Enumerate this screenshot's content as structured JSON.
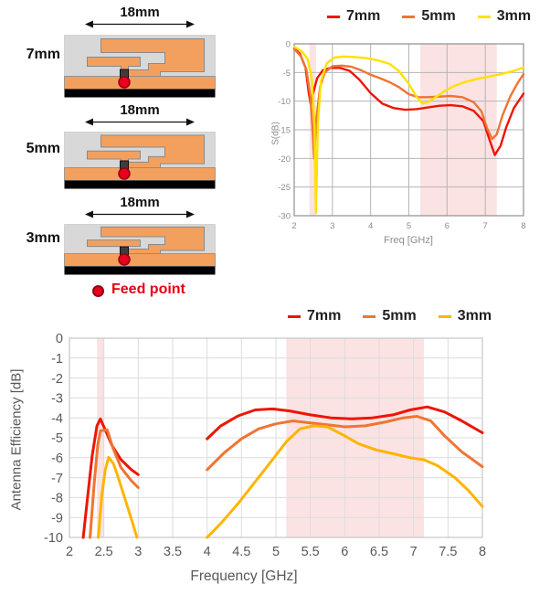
{
  "diagram_panel": {
    "figures": [
      {
        "width_label": "18mm",
        "height_label": "7mm"
      },
      {
        "width_label": "18mm",
        "height_label": "5mm"
      },
      {
        "width_label": "18mm",
        "height_label": "3mm"
      }
    ],
    "feed_point_label": "Feed point",
    "colors": {
      "substrate": "#d8d8d8",
      "copper": "#f3a05e",
      "copper_outline": "#8a8a8a",
      "pcb_black": "#000000",
      "feed_dot": "#e8001e",
      "feed_text": "#e60012"
    }
  },
  "chart_data": [
    {
      "id": "s",
      "type": "line",
      "title": "",
      "xlabel": "Freq [GHz]",
      "ylabel": "S(dB)",
      "xlim": [
        2,
        8
      ],
      "ylim": [
        -30,
        0
      ],
      "xticks": [
        2,
        3,
        4,
        5,
        6,
        7,
        8
      ],
      "yticks": [
        0,
        -5,
        -10,
        -15,
        -20,
        -25,
        -30
      ],
      "grid": true,
      "legend_position": "top",
      "band_color": "#fbe3e3",
      "highlight_bands_ghz": [
        [
          2.4,
          2.57
        ],
        [
          5.3,
          7.3
        ]
      ],
      "series": [
        {
          "name": "7mm",
          "color": "#ee1505",
          "segments": [
            [
              [
                2.0,
                -0.8
              ],
              [
                2.15,
                -1.7
              ],
              [
                2.3,
                -4.2
              ],
              [
                2.38,
                -8.5
              ],
              [
                2.43,
                -10.5
              ],
              [
                2.5,
                -8.5
              ],
              [
                2.6,
                -6.0
              ],
              [
                2.75,
                -4.6
              ],
              [
                2.95,
                -4.2
              ],
              [
                3.2,
                -4.2
              ],
              [
                3.45,
                -4.7
              ],
              [
                3.7,
                -6.2
              ],
              [
                4.0,
                -8.6
              ],
              [
                4.3,
                -10.4
              ],
              [
                4.6,
                -11.2
              ],
              [
                4.9,
                -11.5
              ],
              [
                5.2,
                -11.4
              ],
              [
                5.5,
                -11.1
              ],
              [
                5.8,
                -10.8
              ],
              [
                6.1,
                -10.7
              ],
              [
                6.4,
                -10.9
              ],
              [
                6.7,
                -11.7
              ],
              [
                6.95,
                -13.5
              ],
              [
                7.1,
                -16.5
              ],
              [
                7.25,
                -19.4
              ],
              [
                7.4,
                -17.8
              ],
              [
                7.55,
                -14.5
              ],
              [
                7.75,
                -11.2
              ],
              [
                8.0,
                -8.7
              ]
            ]
          ]
        },
        {
          "name": "5mm",
          "color": "#f07433",
          "segments": [
            [
              [
                2.0,
                -0.9
              ],
              [
                2.18,
                -2.2
              ],
              [
                2.32,
                -4.5
              ],
              [
                2.42,
                -9.0
              ],
              [
                2.48,
                -15.0
              ],
              [
                2.52,
                -20.0
              ],
              [
                2.58,
                -13.0
              ],
              [
                2.68,
                -7.5
              ],
              [
                2.8,
                -5.0
              ],
              [
                3.0,
                -3.9
              ],
              [
                3.25,
                -3.8
              ],
              [
                3.5,
                -4.0
              ],
              [
                3.75,
                -4.6
              ],
              [
                4.0,
                -5.4
              ],
              [
                4.25,
                -6.0
              ],
              [
                4.5,
                -6.7
              ],
              [
                4.75,
                -7.6
              ],
              [
                5.0,
                -8.8
              ],
              [
                5.25,
                -9.3
              ],
              [
                5.5,
                -9.3
              ],
              [
                5.8,
                -9.2
              ],
              [
                6.1,
                -9.1
              ],
              [
                6.4,
                -9.3
              ],
              [
                6.7,
                -10.2
              ],
              [
                6.9,
                -11.8
              ],
              [
                7.05,
                -14.8
              ],
              [
                7.18,
                -16.6
              ],
              [
                7.3,
                -15.8
              ],
              [
                7.45,
                -12.5
              ],
              [
                7.65,
                -9.2
              ],
              [
                7.85,
                -6.8
              ],
              [
                8.0,
                -5.3
              ]
            ]
          ]
        },
        {
          "name": "3mm",
          "color": "#ffe100",
          "segments": [
            [
              [
                2.0,
                -0.5
              ],
              [
                2.2,
                -1.3
              ],
              [
                2.35,
                -2.6
              ],
              [
                2.46,
                -6.0
              ],
              [
                2.53,
                -14.0
              ],
              [
                2.57,
                -29.5
              ],
              [
                2.62,
                -14.0
              ],
              [
                2.7,
                -6.5
              ],
              [
                2.85,
                -3.4
              ],
              [
                3.05,
                -2.4
              ],
              [
                3.3,
                -2.2
              ],
              [
                3.6,
                -2.3
              ],
              [
                3.9,
                -2.5
              ],
              [
                4.2,
                -2.9
              ],
              [
                4.5,
                -3.5
              ],
              [
                4.75,
                -4.8
              ],
              [
                5.0,
                -7.0
              ],
              [
                5.2,
                -9.2
              ],
              [
                5.35,
                -10.4
              ],
              [
                5.5,
                -10.2
              ],
              [
                5.7,
                -9.3
              ],
              [
                5.95,
                -8.2
              ],
              [
                6.2,
                -7.3
              ],
              [
                6.5,
                -6.6
              ],
              [
                6.8,
                -6.1
              ],
              [
                7.1,
                -5.7
              ],
              [
                7.4,
                -5.3
              ],
              [
                7.7,
                -4.8
              ],
              [
                8.0,
                -4.1
              ]
            ]
          ]
        }
      ]
    },
    {
      "id": "eff",
      "type": "line",
      "title": "",
      "xlabel": "Frequency [GHz]",
      "ylabel": "Antenna Efficiency [dB]",
      "xlim": [
        2,
        8
      ],
      "ylim": [
        -10,
        0
      ],
      "xticks": [
        2,
        2.5,
        3,
        3.5,
        4,
        4.5,
        5,
        5.5,
        6,
        6.5,
        7,
        7.5,
        8
      ],
      "yticks": [
        0,
        -1,
        -2,
        -3,
        -4,
        -5,
        -6,
        -7,
        -8,
        -9,
        -10
      ],
      "grid": true,
      "legend_position": "top",
      "band_color": "#fbe3e3",
      "highlight_bands_ghz": [
        [
          2.4,
          2.5
        ],
        [
          5.15,
          7.15
        ]
      ],
      "series": [
        {
          "name": "7mm",
          "color": "#ee1505",
          "segments": [
            [
              [
                2.2,
                -10
              ],
              [
                2.27,
                -7.8
              ],
              [
                2.33,
                -5.9
              ],
              [
                2.4,
                -4.4
              ],
              [
                2.45,
                -4.05
              ],
              [
                2.52,
                -4.6
              ],
              [
                2.62,
                -5.4
              ],
              [
                2.75,
                -6.1
              ],
              [
                2.9,
                -6.6
              ],
              [
                3.0,
                -6.85
              ]
            ],
            [
              [
                4.0,
                -5.05
              ],
              [
                4.2,
                -4.4
              ],
              [
                4.45,
                -3.9
              ],
              [
                4.7,
                -3.6
              ],
              [
                4.95,
                -3.55
              ],
              [
                5.2,
                -3.65
              ],
              [
                5.5,
                -3.85
              ],
              [
                5.8,
                -4.0
              ],
              [
                6.1,
                -4.05
              ],
              [
                6.4,
                -4.0
              ],
              [
                6.7,
                -3.85
              ],
              [
                6.95,
                -3.6
              ],
              [
                7.2,
                -3.45
              ],
              [
                7.45,
                -3.7
              ],
              [
                7.7,
                -4.15
              ],
              [
                8.0,
                -4.75
              ]
            ]
          ]
        },
        {
          "name": "5mm",
          "color": "#f07433",
          "segments": [
            [
              [
                2.3,
                -10
              ],
              [
                2.36,
                -7.3
              ],
              [
                2.41,
                -5.4
              ],
              [
                2.45,
                -4.65
              ],
              [
                2.55,
                -4.6
              ],
              [
                2.63,
                -5.5
              ],
              [
                2.75,
                -6.5
              ],
              [
                2.9,
                -7.15
              ],
              [
                3.0,
                -7.5
              ]
            ],
            [
              [
                4.0,
                -6.6
              ],
              [
                4.25,
                -5.75
              ],
              [
                4.5,
                -5.05
              ],
              [
                4.75,
                -4.55
              ],
              [
                5.0,
                -4.3
              ],
              [
                5.25,
                -4.15
              ],
              [
                5.5,
                -4.25
              ],
              [
                5.75,
                -4.35
              ],
              [
                6.0,
                -4.45
              ],
              [
                6.3,
                -4.4
              ],
              [
                6.6,
                -4.2
              ],
              [
                6.85,
                -4.0
              ],
              [
                7.05,
                -3.92
              ],
              [
                7.25,
                -4.15
              ],
              [
                7.45,
                -4.9
              ],
              [
                7.7,
                -5.7
              ],
              [
                8.0,
                -6.45
              ]
            ]
          ]
        },
        {
          "name": "3mm",
          "color": "#ffb400",
          "segments": [
            [
              [
                2.42,
                -10
              ],
              [
                2.47,
                -7.9
              ],
              [
                2.52,
                -6.6
              ],
              [
                2.57,
                -5.98
              ],
              [
                2.64,
                -6.3
              ],
              [
                2.72,
                -7.1
              ],
              [
                2.82,
                -8.2
              ],
              [
                2.92,
                -9.3
              ],
              [
                2.98,
                -10
              ]
            ],
            [
              [
                4.0,
                -10
              ],
              [
                4.2,
                -9.3
              ],
              [
                4.45,
                -8.3
              ],
              [
                4.7,
                -7.2
              ],
              [
                4.95,
                -6.1
              ],
              [
                5.15,
                -5.2
              ],
              [
                5.35,
                -4.55
              ],
              [
                5.55,
                -4.4
              ],
              [
                5.75,
                -4.45
              ],
              [
                6.0,
                -4.9
              ],
              [
                6.2,
                -5.3
              ],
              [
                6.45,
                -5.6
              ],
              [
                6.7,
                -5.8
              ],
              [
                6.95,
                -6.0
              ],
              [
                7.15,
                -6.1
              ],
              [
                7.35,
                -6.4
              ],
              [
                7.6,
                -7.0
              ],
              [
                7.8,
                -7.65
              ],
              [
                8.0,
                -8.45
              ]
            ]
          ]
        }
      ]
    }
  ]
}
